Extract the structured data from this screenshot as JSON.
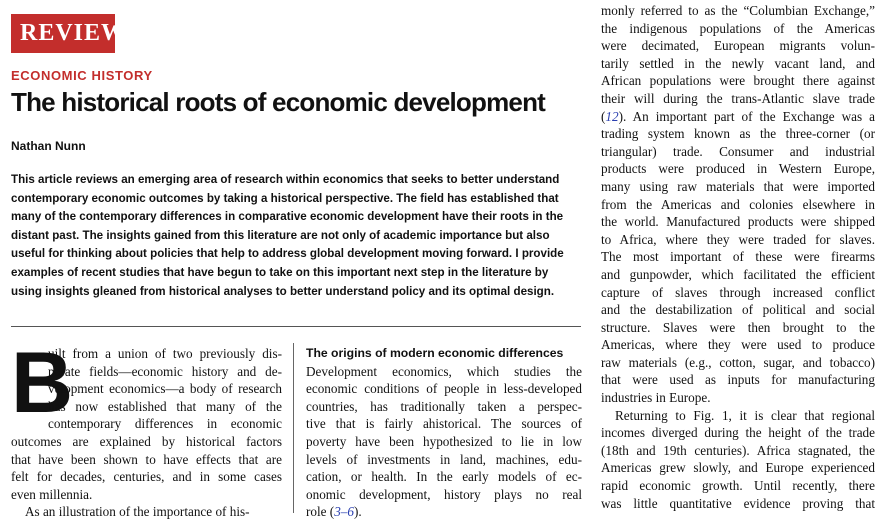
{
  "header": {
    "badge": "REVIEW",
    "kicker": "ECONOMIC HISTORY",
    "title": "The historical roots of economic development",
    "author": "Nathan Nunn"
  },
  "abstract": "This article reviews an emerging area of research within economics that seeks to better understand contemporary economic outcomes by taking a historical perspective. The field has established that many of the contemporary differences in comparative economic development have their roots in the distant past. The insights gained from this literature are not only of academic importance but also useful for thinking about policies that help to address global development moving forward. I provide examples of recent studies that have begun to take on this important next step in the literature by using insights gleaned from historical analyses to better understand policy and its optimal design.",
  "col1": {
    "dropcap": "B",
    "lines": [
      "uilt from a union of two previously dis-",
      "parate fields—economic history and de-",
      "velopment economics—a body of research",
      "has now established that many of the",
      "contemporary differences in economic",
      "outcomes are explained by historical factors",
      "that have been shown to have effects that are",
      "felt for decades, centuries, and in some cases",
      "even millennia.",
      "As an illustration of the importance of his-"
    ]
  },
  "col2": {
    "subhead": "The origins of modern economic differences",
    "lines": [
      "Development economics, which studies the",
      "economic conditions of people in less-developed",
      "countries, has traditionally taken a perspec-",
      "tive that is fairly ahistorical. The sources of",
      "poverty have been hypothesized to lie in low",
      "levels of investments in land, machines, edu-",
      "cation, or health. In the early models of ec-",
      "onomic development, history plays no real"
    ],
    "last_prefix": "role (",
    "last_ref": "3–6",
    "last_suffix": ")."
  },
  "col3": {
    "lines_a": [
      "monly referred to as the “Columbian Exchange,”",
      "the indigenous populations of the Americas",
      "were decimated, European migrants volun-",
      "tarily settled in the newly vacant land, and",
      "African populations were brought there against",
      "their will during the trans-Atlantic slave trade"
    ],
    "ref_line_prefix": "(",
    "ref_line_ref": "12",
    "ref_line_suffix": "). An important part of the Exchange was a",
    "lines_b": [
      "trading system known as the three-corner (or",
      "triangular) trade. Consumer and industrial",
      "products were produced in Western Europe,",
      "many using raw materials that were imported",
      "from the Americas and colonies elsewhere in",
      "the world. Manufactured products were shipped",
      "to Africa, where they were traded for slaves.",
      "The most important of these were firearms",
      "and gunpowder, which facilitated the efficient",
      "capture of slaves through increased conflict",
      "and the destabilization of political and social",
      "structure. Slaves were then brought to the",
      "Americas, where they were used to produce",
      "raw materials (e.g., cotton, sugar, and tobacco)",
      "that were used as inputs for manufacturing",
      "industries in Europe.",
      "Returning to Fig. 1, it is clear that regional",
      "incomes diverged during the height of the trade",
      "(18th and 19th centuries). Africa stagnated, the",
      "Americas grew slowly, and Europe experienced",
      "rapid economic growth. Until recently, there",
      "was little quantitative evidence proving that"
    ]
  }
}
